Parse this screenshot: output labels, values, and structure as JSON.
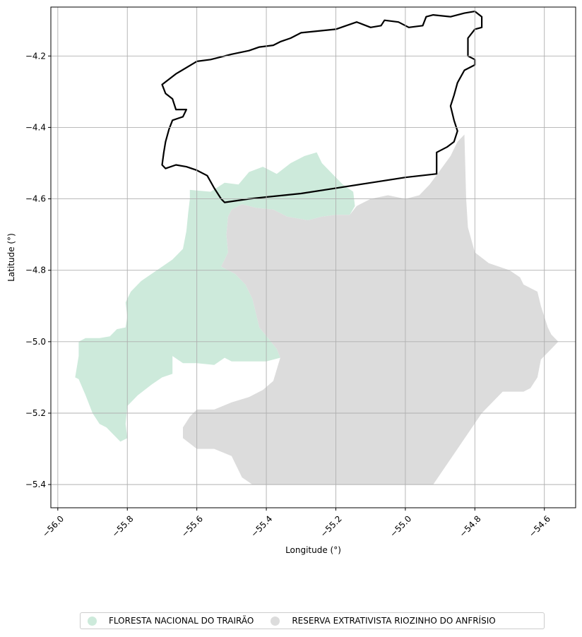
{
  "chart_data": {
    "type": "map",
    "xlabel": "Longitude (°)",
    "ylabel": "Latitude (°)",
    "xlim": [
      -56.02,
      -54.51
    ],
    "ylim": [
      -5.465,
      -4.063
    ],
    "x_ticks": [
      -56.0,
      -55.8,
      -55.6,
      -55.4,
      -55.2,
      -55.0,
      -54.8,
      -54.6
    ],
    "x_tick_labels": [
      "−56.0",
      "−55.8",
      "−55.6",
      "−55.4",
      "−55.2",
      "−55.0",
      "−54.8",
      "−54.6"
    ],
    "y_ticks": [
      -4.2,
      -4.4,
      -4.6,
      -4.8,
      -5.0,
      -5.2,
      -5.4
    ],
    "y_tick_labels": [
      "−4.2",
      "−4.4",
      "−4.6",
      "−4.8",
      "−5.0",
      "−5.2",
      "−5.4"
    ],
    "grid": true,
    "legend_placement": "bottom-center",
    "layers": [
      {
        "name": "FLORESTA NACIONAL DO TRAIRÃO",
        "color": "#cdeadb",
        "kind": "fill",
        "polygon": [
          [
            -55.62,
            -4.575
          ],
          [
            -55.56,
            -4.58
          ],
          [
            -55.52,
            -4.555
          ],
          [
            -55.48,
            -4.56
          ],
          [
            -55.45,
            -4.525
          ],
          [
            -55.41,
            -4.51
          ],
          [
            -55.37,
            -4.53
          ],
          [
            -55.33,
            -4.5
          ],
          [
            -55.29,
            -4.48
          ],
          [
            -55.255,
            -4.47
          ],
          [
            -55.24,
            -4.5
          ],
          [
            -55.2,
            -4.54
          ],
          [
            -55.18,
            -4.56
          ],
          [
            -55.15,
            -4.58
          ],
          [
            -55.145,
            -4.62
          ],
          [
            -55.16,
            -4.645
          ],
          [
            -55.2,
            -4.645
          ],
          [
            -55.24,
            -4.65
          ],
          [
            -55.28,
            -4.66
          ],
          [
            -55.34,
            -4.65
          ],
          [
            -55.38,
            -4.63
          ],
          [
            -55.43,
            -4.625
          ],
          [
            -55.47,
            -4.615
          ],
          [
            -55.5,
            -4.63
          ],
          [
            -55.51,
            -4.65
          ],
          [
            -55.515,
            -4.7
          ],
          [
            -55.51,
            -4.75
          ],
          [
            -55.53,
            -4.79
          ],
          [
            -55.49,
            -4.81
          ],
          [
            -55.46,
            -4.84
          ],
          [
            -55.44,
            -4.88
          ],
          [
            -55.43,
            -4.92
          ],
          [
            -55.42,
            -4.96
          ],
          [
            -55.395,
            -4.99
          ],
          [
            -55.37,
            -5.02
          ],
          [
            -55.36,
            -5.045
          ],
          [
            -55.4,
            -5.055
          ],
          [
            -55.43,
            -5.055
          ],
          [
            -55.47,
            -5.055
          ],
          [
            -55.5,
            -5.055
          ],
          [
            -55.52,
            -5.045
          ],
          [
            -55.55,
            -5.065
          ],
          [
            -55.6,
            -5.06
          ],
          [
            -55.64,
            -5.06
          ],
          [
            -55.67,
            -5.04
          ],
          [
            -55.67,
            -5.09
          ],
          [
            -55.7,
            -5.1
          ],
          [
            -55.73,
            -5.12
          ],
          [
            -55.77,
            -5.15
          ],
          [
            -55.8,
            -5.18
          ],
          [
            -55.805,
            -5.23
          ],
          [
            -55.8,
            -5.27
          ],
          [
            -55.82,
            -5.28
          ],
          [
            -55.86,
            -5.24
          ],
          [
            -55.88,
            -5.23
          ],
          [
            -55.9,
            -5.2
          ],
          [
            -55.92,
            -5.15
          ],
          [
            -55.94,
            -5.105
          ],
          [
            -55.95,
            -5.1
          ],
          [
            -55.945,
            -5.07
          ],
          [
            -55.94,
            -5.04
          ],
          [
            -55.94,
            -5.0
          ],
          [
            -55.92,
            -4.99
          ],
          [
            -55.88,
            -4.99
          ],
          [
            -55.85,
            -4.985
          ],
          [
            -55.83,
            -4.965
          ],
          [
            -55.805,
            -4.96
          ],
          [
            -55.8,
            -4.93
          ],
          [
            -55.805,
            -4.89
          ],
          [
            -55.79,
            -4.86
          ],
          [
            -55.76,
            -4.83
          ],
          [
            -55.73,
            -4.81
          ],
          [
            -55.7,
            -4.79
          ],
          [
            -55.67,
            -4.77
          ],
          [
            -55.64,
            -4.74
          ],
          [
            -55.63,
            -4.69
          ],
          [
            -55.625,
            -4.64
          ],
          [
            -55.62,
            -4.6
          ],
          [
            -55.62,
            -4.575
          ]
        ]
      },
      {
        "name": "RESERVA EXTRATIVISTA RIOZINHO DO ANFRÍSIO",
        "color": "#dcdcdc",
        "kind": "fill",
        "polygon": [
          [
            -54.83,
            -4.42
          ],
          [
            -54.825,
            -4.6
          ],
          [
            -54.82,
            -4.68
          ],
          [
            -54.8,
            -4.75
          ],
          [
            -54.76,
            -4.78
          ],
          [
            -54.7,
            -4.8
          ],
          [
            -54.67,
            -4.82
          ],
          [
            -54.66,
            -4.84
          ],
          [
            -54.62,
            -4.86
          ],
          [
            -54.61,
            -4.9
          ],
          [
            -54.59,
            -4.96
          ],
          [
            -54.58,
            -4.98
          ],
          [
            -54.56,
            -5.0
          ],
          [
            -54.58,
            -5.02
          ],
          [
            -54.61,
            -5.05
          ],
          [
            -54.62,
            -5.1
          ],
          [
            -54.64,
            -5.13
          ],
          [
            -54.66,
            -5.14
          ],
          [
            -54.72,
            -5.14
          ],
          [
            -54.78,
            -5.2
          ],
          [
            -54.85,
            -5.3
          ],
          [
            -54.92,
            -5.4
          ],
          [
            -55.04,
            -5.4
          ],
          [
            -55.15,
            -5.4
          ],
          [
            -55.3,
            -5.4
          ],
          [
            -55.44,
            -5.4
          ],
          [
            -55.47,
            -5.38
          ],
          [
            -55.5,
            -5.32
          ],
          [
            -55.55,
            -5.3
          ],
          [
            -55.6,
            -5.3
          ],
          [
            -55.64,
            -5.27
          ],
          [
            -55.64,
            -5.24
          ],
          [
            -55.62,
            -5.21
          ],
          [
            -55.6,
            -5.19
          ],
          [
            -55.55,
            -5.19
          ],
          [
            -55.5,
            -5.17
          ],
          [
            -55.45,
            -5.155
          ],
          [
            -55.41,
            -5.135
          ],
          [
            -55.38,
            -5.11
          ],
          [
            -55.36,
            -5.045
          ],
          [
            -55.37,
            -5.02
          ],
          [
            -55.395,
            -4.99
          ],
          [
            -55.42,
            -4.96
          ],
          [
            -55.43,
            -4.92
          ],
          [
            -55.44,
            -4.88
          ],
          [
            -55.46,
            -4.84
          ],
          [
            -55.49,
            -4.81
          ],
          [
            -55.53,
            -4.79
          ],
          [
            -55.51,
            -4.75
          ],
          [
            -55.515,
            -4.7
          ],
          [
            -55.51,
            -4.65
          ],
          [
            -55.5,
            -4.63
          ],
          [
            -55.47,
            -4.615
          ],
          [
            -55.43,
            -4.625
          ],
          [
            -55.38,
            -4.63
          ],
          [
            -55.34,
            -4.65
          ],
          [
            -55.28,
            -4.66
          ],
          [
            -55.24,
            -4.65
          ],
          [
            -55.2,
            -4.645
          ],
          [
            -55.16,
            -4.645
          ],
          [
            -55.14,
            -4.62
          ],
          [
            -55.1,
            -4.6
          ],
          [
            -55.05,
            -4.59
          ],
          [
            -55.0,
            -4.6
          ],
          [
            -54.96,
            -4.59
          ],
          [
            -54.93,
            -4.56
          ],
          [
            -54.9,
            -4.52
          ],
          [
            -54.87,
            -4.48
          ],
          [
            -54.85,
            -4.44
          ],
          [
            -54.83,
            -4.42
          ]
        ]
      },
      {
        "name": "",
        "color": "#000000",
        "kind": "outline",
        "polygon": [
          [
            -55.7,
            -4.28
          ],
          [
            -55.66,
            -4.25
          ],
          [
            -55.6,
            -4.215
          ],
          [
            -55.56,
            -4.21
          ],
          [
            -55.5,
            -4.195
          ],
          [
            -55.45,
            -4.185
          ],
          [
            -55.42,
            -4.175
          ],
          [
            -55.38,
            -4.17
          ],
          [
            -55.36,
            -4.16
          ],
          [
            -55.33,
            -4.15
          ],
          [
            -55.3,
            -4.135
          ],
          [
            -55.25,
            -4.13
          ],
          [
            -55.2,
            -4.125
          ],
          [
            -55.17,
            -4.115
          ],
          [
            -55.14,
            -4.105
          ],
          [
            -55.1,
            -4.12
          ],
          [
            -55.07,
            -4.115
          ],
          [
            -55.06,
            -4.1
          ],
          [
            -55.02,
            -4.105
          ],
          [
            -54.99,
            -4.12
          ],
          [
            -54.95,
            -4.115
          ],
          [
            -54.94,
            -4.09
          ],
          [
            -54.92,
            -4.085
          ],
          [
            -54.87,
            -4.09
          ],
          [
            -54.83,
            -4.08
          ],
          [
            -54.8,
            -4.075
          ],
          [
            -54.78,
            -4.09
          ],
          [
            -54.78,
            -4.12
          ],
          [
            -54.8,
            -4.125
          ],
          [
            -54.82,
            -4.15
          ],
          [
            -54.82,
            -4.2
          ],
          [
            -54.8,
            -4.21
          ],
          [
            -54.8,
            -4.225
          ],
          [
            -54.83,
            -4.24
          ],
          [
            -54.85,
            -4.275
          ],
          [
            -54.86,
            -4.31
          ],
          [
            -54.87,
            -4.34
          ],
          [
            -54.86,
            -4.38
          ],
          [
            -54.85,
            -4.41
          ],
          [
            -54.86,
            -4.44
          ],
          [
            -54.88,
            -4.455
          ],
          [
            -54.91,
            -4.47
          ],
          [
            -54.91,
            -4.53
          ],
          [
            -55.0,
            -4.54
          ],
          [
            -55.1,
            -4.555
          ],
          [
            -55.2,
            -4.57
          ],
          [
            -55.3,
            -4.585
          ],
          [
            -55.4,
            -4.595
          ],
          [
            -55.45,
            -4.6
          ],
          [
            -55.52,
            -4.61
          ],
          [
            -55.53,
            -4.6
          ],
          [
            -55.55,
            -4.57
          ],
          [
            -55.57,
            -4.535
          ],
          [
            -55.6,
            -4.52
          ],
          [
            -55.63,
            -4.51
          ],
          [
            -55.66,
            -4.505
          ],
          [
            -55.69,
            -4.515
          ],
          [
            -55.7,
            -4.505
          ],
          [
            -55.695,
            -4.47
          ],
          [
            -55.69,
            -4.44
          ],
          [
            -55.68,
            -4.405
          ],
          [
            -55.67,
            -4.38
          ],
          [
            -55.64,
            -4.37
          ],
          [
            -55.63,
            -4.35
          ],
          [
            -55.66,
            -4.35
          ],
          [
            -55.67,
            -4.32
          ],
          [
            -55.69,
            -4.305
          ],
          [
            -55.7,
            -4.28
          ]
        ]
      }
    ],
    "legend_entries": [
      {
        "label": "FLORESTA NACIONAL DO TRAIRÃO",
        "color": "#cdeadb"
      },
      {
        "label": "RESERVA EXTRATIVISTA RIOZINHO DO ANFRÍSIO",
        "color": "#dcdcdc"
      }
    ]
  }
}
